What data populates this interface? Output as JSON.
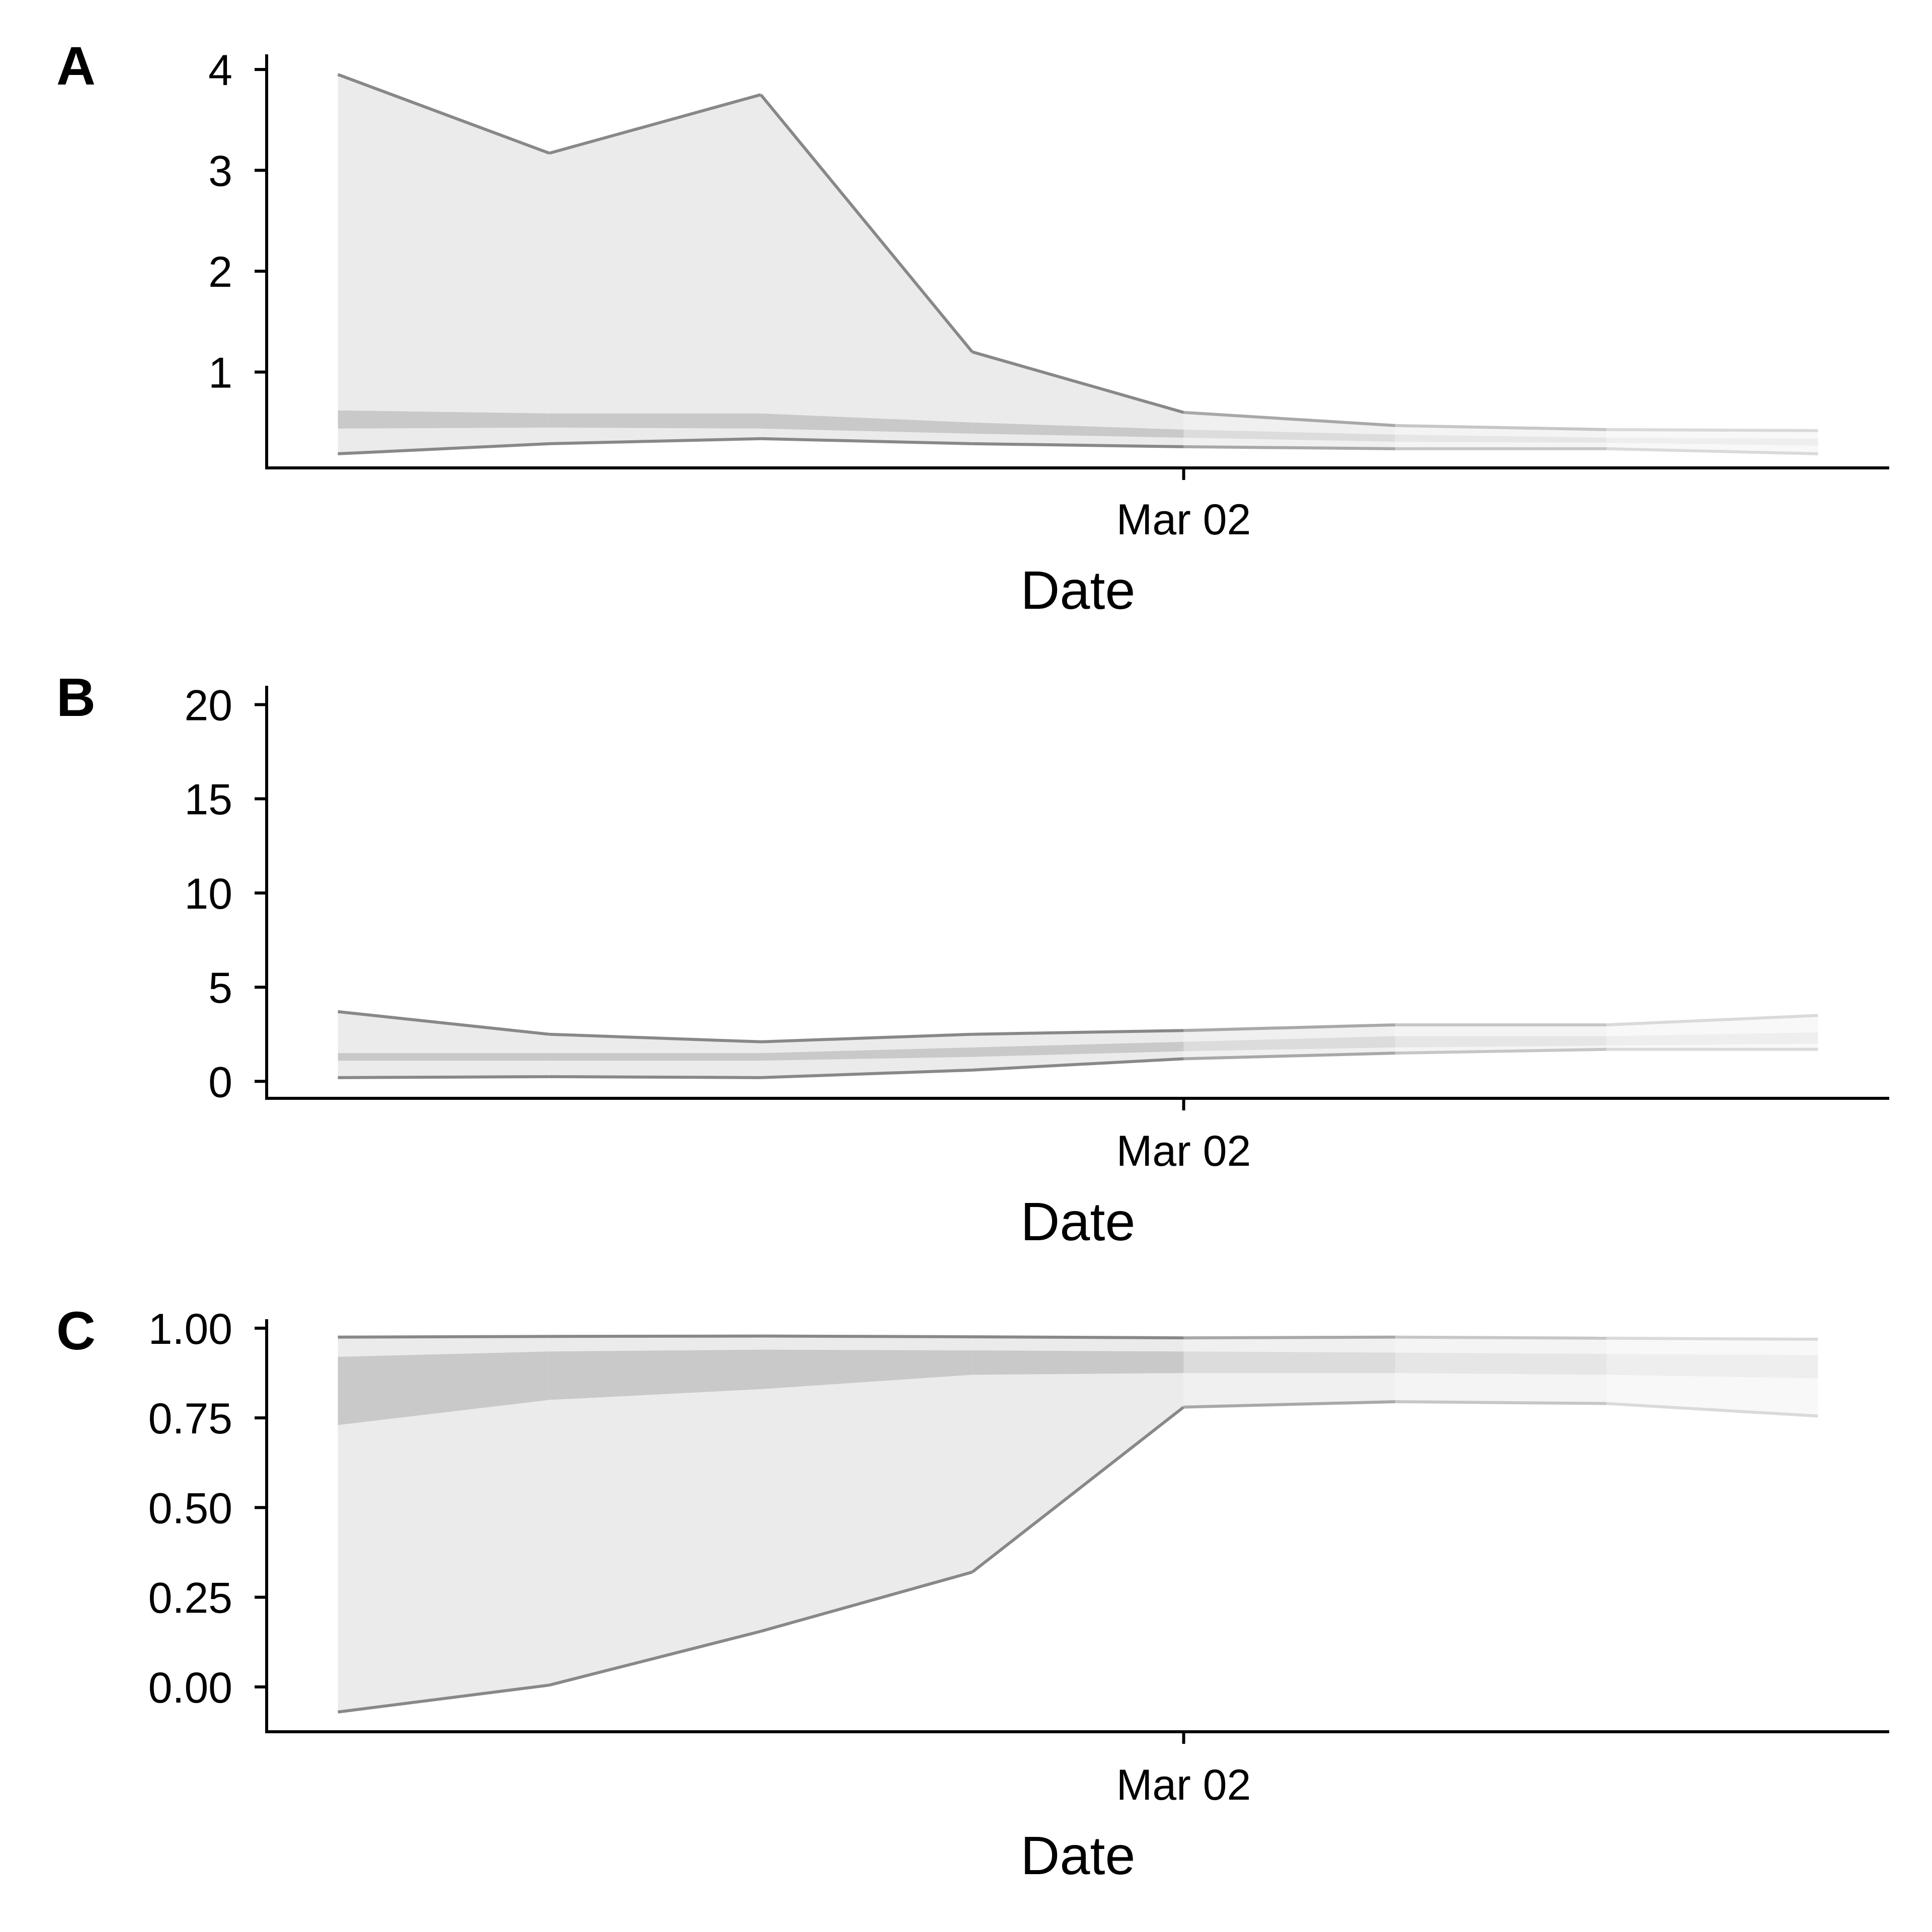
{
  "chart_data": [
    {
      "panel_label": "A",
      "type": "area",
      "xlabel": "Date",
      "ylabel": "",
      "x_tick_labels": [
        "Mar 02"
      ],
      "x_tick_dates": [
        "2020-03-02"
      ],
      "x": [
        "2020-02-27",
        "2020-02-28",
        "2020-02-29",
        "2020-03-01",
        "2020-03-02",
        "2020-03-03",
        "2020-03-04",
        "2020-03-05"
      ],
      "ylim": [
        0.05,
        4.15
      ],
      "xlim": [
        "2020-02-26T15:55",
        "2020-03-05T08:05"
      ],
      "y_ticks": [
        1,
        2,
        3,
        4
      ],
      "y_tick_labels": [
        "1",
        "2",
        "3",
        "4"
      ],
      "outer_upper": [
        3.95,
        3.17,
        3.75,
        1.2,
        0.6,
        0.47,
        0.43,
        0.42
      ],
      "outer_lower": [
        0.19,
        0.29,
        0.34,
        0.29,
        0.26,
        0.24,
        0.24,
        0.19
      ],
      "inner_upper": [
        0.62,
        0.59,
        0.59,
        0.5,
        0.43,
        0.38,
        0.35,
        0.34
      ],
      "inner_lower": [
        0.44,
        0.45,
        0.44,
        0.39,
        0.35,
        0.31,
        0.3,
        0.27
      ],
      "estimate_type_changes_after_index": 4,
      "grid": false
    },
    {
      "panel_label": "B",
      "type": "area",
      "xlabel": "Date",
      "ylabel": "",
      "x_tick_labels": [
        "Mar 02"
      ],
      "x_tick_dates": [
        "2020-03-02"
      ],
      "x": [
        "2020-02-27",
        "2020-02-28",
        "2020-02-29",
        "2020-03-01",
        "2020-03-02",
        "2020-03-03",
        "2020-03-04",
        "2020-03-05"
      ],
      "ylim": [
        -0.9,
        21.0
      ],
      "xlim": [
        "2020-02-26T15:55",
        "2020-03-05T08:05"
      ],
      "y_ticks": [
        0,
        5,
        10,
        15,
        20
      ],
      "y_tick_labels": [
        "0",
        "5",
        "10",
        "15",
        "20"
      ],
      "outer_upper": [
        3.7,
        2.5,
        2.1,
        2.5,
        2.7,
        3.0,
        3.0,
        3.5
      ],
      "outer_lower": [
        0.2,
        0.25,
        0.2,
        0.6,
        1.2,
        1.5,
        1.7,
        1.7
      ],
      "inner_upper": [
        1.5,
        1.5,
        1.5,
        1.8,
        2.1,
        2.4,
        2.4,
        2.6
      ],
      "inner_lower": [
        1.1,
        1.1,
        1.1,
        1.3,
        1.6,
        1.8,
        1.9,
        2.0
      ],
      "estimate_type_changes_after_index": 4,
      "grid": false
    },
    {
      "panel_label": "C",
      "type": "area",
      "xlabel": "Date",
      "ylabel": "",
      "x_tick_labels": [
        "Mar 02"
      ],
      "x_tick_dates": [
        "2020-03-02"
      ],
      "x": [
        "2020-02-27",
        "2020-02-28",
        "2020-02-29",
        "2020-03-01",
        "2020-03-02",
        "2020-03-03",
        "2020-03-04",
        "2020-03-05"
      ],
      "ylim": [
        -0.125,
        1.025
      ],
      "xlim": [
        "2020-02-26T15:55",
        "2020-03-05T08:05"
      ],
      "y_ticks": [
        0,
        0.25,
        0.5,
        0.75,
        1
      ],
      "y_tick_labels": [
        "0.00",
        "0.25",
        "0.50",
        "0.75",
        "1.00"
      ],
      "outer_upper": [
        0.975,
        0.977,
        0.978,
        0.976,
        0.973,
        0.975,
        0.972,
        0.969
      ],
      "outer_lower": [
        -0.07,
        0.005,
        0.155,
        0.32,
        0.78,
        0.795,
        0.79,
        0.755
      ],
      "inner_upper": [
        0.92,
        0.935,
        0.94,
        0.938,
        0.935,
        0.932,
        0.928,
        0.925
      ],
      "inner_lower": [
        0.73,
        0.8,
        0.83,
        0.87,
        0.875,
        0.875,
        0.87,
        0.86
      ],
      "estimate_type_changes_after_index": 4,
      "grid": false
    }
  ]
}
